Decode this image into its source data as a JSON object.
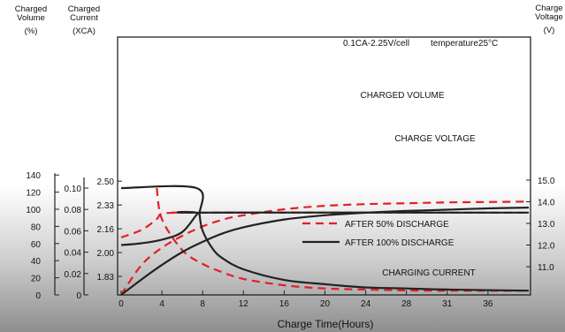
{
  "chart_data": {
    "type": "line",
    "title": "",
    "condition_label": "0.1CA-2.25V/cell",
    "temperature_label": "temperature25°C",
    "xlabel": "Charge Time(Hours)",
    "x_ticks": [
      "0",
      "4",
      "8",
      "12",
      "16",
      "20",
      "24",
      "28",
      "31",
      "36"
    ],
    "xlim": [
      0,
      40
    ],
    "axes": {
      "volume": {
        "header": [
          "Charged",
          "Volume"
        ],
        "unit": "(%)",
        "range": [
          0,
          140
        ],
        "ticks": [
          "0",
          "20",
          "40",
          "60",
          "80",
          "100",
          "120",
          "140"
        ]
      },
      "current": {
        "header": [
          "Charged",
          "Current"
        ],
        "unit": "(XCA)",
        "range": [
          0,
          0.11
        ],
        "ticks": [
          "0",
          "0.02",
          "0.04",
          "0.06",
          "0.08",
          "0.10"
        ]
      },
      "cell_voltage": {
        "header": [],
        "unit": "",
        "ticks": [
          "1.83",
          "2.00",
          "2.16",
          "2.33",
          "2.50"
        ]
      },
      "charge_voltage": {
        "header": [
          "Charge",
          "Voltage"
        ],
        "unit": "(V)",
        "ticks": [
          "11.0",
          "12.0",
          "13.0",
          "14.0",
          "15.0"
        ]
      }
    },
    "annotations": [
      "CHARGED VOLUME",
      "CHARGE VOLTAGE",
      "CHARGING CURRENT"
    ],
    "series": [
      {
        "name": "AFTER 50% DISCHARGE",
        "style": "dashed",
        "color": "#e21f26",
        "curves": {
          "charged_volume_pct": [
            [
              0,
              0
            ],
            [
              2,
              35
            ],
            [
              4,
              55
            ],
            [
              6,
              69
            ],
            [
              8,
              80
            ],
            [
              10,
              88
            ],
            [
              12,
              93
            ],
            [
              16,
              100
            ],
            [
              20,
              104
            ],
            [
              24,
              106
            ],
            [
              28,
              107
            ],
            [
              32,
              108
            ],
            [
              36,
              108.5
            ],
            [
              40,
              109
            ]
          ],
          "charge_voltage_v": [
            [
              0,
              12.35
            ],
            [
              2,
              12.7
            ],
            [
              3.5,
              13.2
            ],
            [
              4,
              13.45
            ],
            [
              6,
              13.5
            ],
            [
              8,
              13.5
            ],
            [
              40,
              13.5
            ]
          ],
          "charging_current_xca": [
            [
              3.5,
              0.1
            ],
            [
              4,
              0.071
            ],
            [
              6,
              0.042
            ],
            [
              8,
              0.029
            ],
            [
              10,
              0.021
            ],
            [
              12,
              0.015
            ],
            [
              16,
              0.009
            ],
            [
              20,
              0.006
            ],
            [
              24,
              0.005
            ],
            [
              30,
              0.004
            ],
            [
              40,
              0.004
            ]
          ]
        }
      },
      {
        "name": "AFTER 100% DISCHARGE",
        "style": "solid",
        "color": "#222222",
        "curves": {
          "charged_volume_pct": [
            [
              0,
              0
            ],
            [
              2,
              18
            ],
            [
              4,
              35
            ],
            [
              6,
              50
            ],
            [
              8,
              62
            ],
            [
              10,
              72
            ],
            [
              12,
              79
            ],
            [
              16,
              88
            ],
            [
              20,
              93
            ],
            [
              24,
              96
            ],
            [
              28,
              98
            ],
            [
              32,
              99.5
            ],
            [
              36,
              101
            ],
            [
              40,
              102
            ]
          ],
          "charge_voltage_v": [
            [
              0,
              12.0
            ],
            [
              2,
              12.08
            ],
            [
              4,
              12.25
            ],
            [
              6,
              12.6
            ],
            [
              7.5,
              13.45
            ],
            [
              8,
              13.5
            ],
            [
              40,
              13.5
            ]
          ],
          "charging_current_xca": [
            [
              0,
              0.1
            ],
            [
              7.4,
              0.1
            ],
            [
              7.7,
              0.075
            ],
            [
              8,
              0.06
            ],
            [
              9,
              0.043
            ],
            [
              10,
              0.034
            ],
            [
              12,
              0.024
            ],
            [
              16,
              0.014
            ],
            [
              20,
              0.01
            ],
            [
              24,
              0.007
            ],
            [
              28,
              0.006
            ],
            [
              32,
              0.005
            ],
            [
              40,
              0.004
            ]
          ]
        }
      }
    ]
  }
}
